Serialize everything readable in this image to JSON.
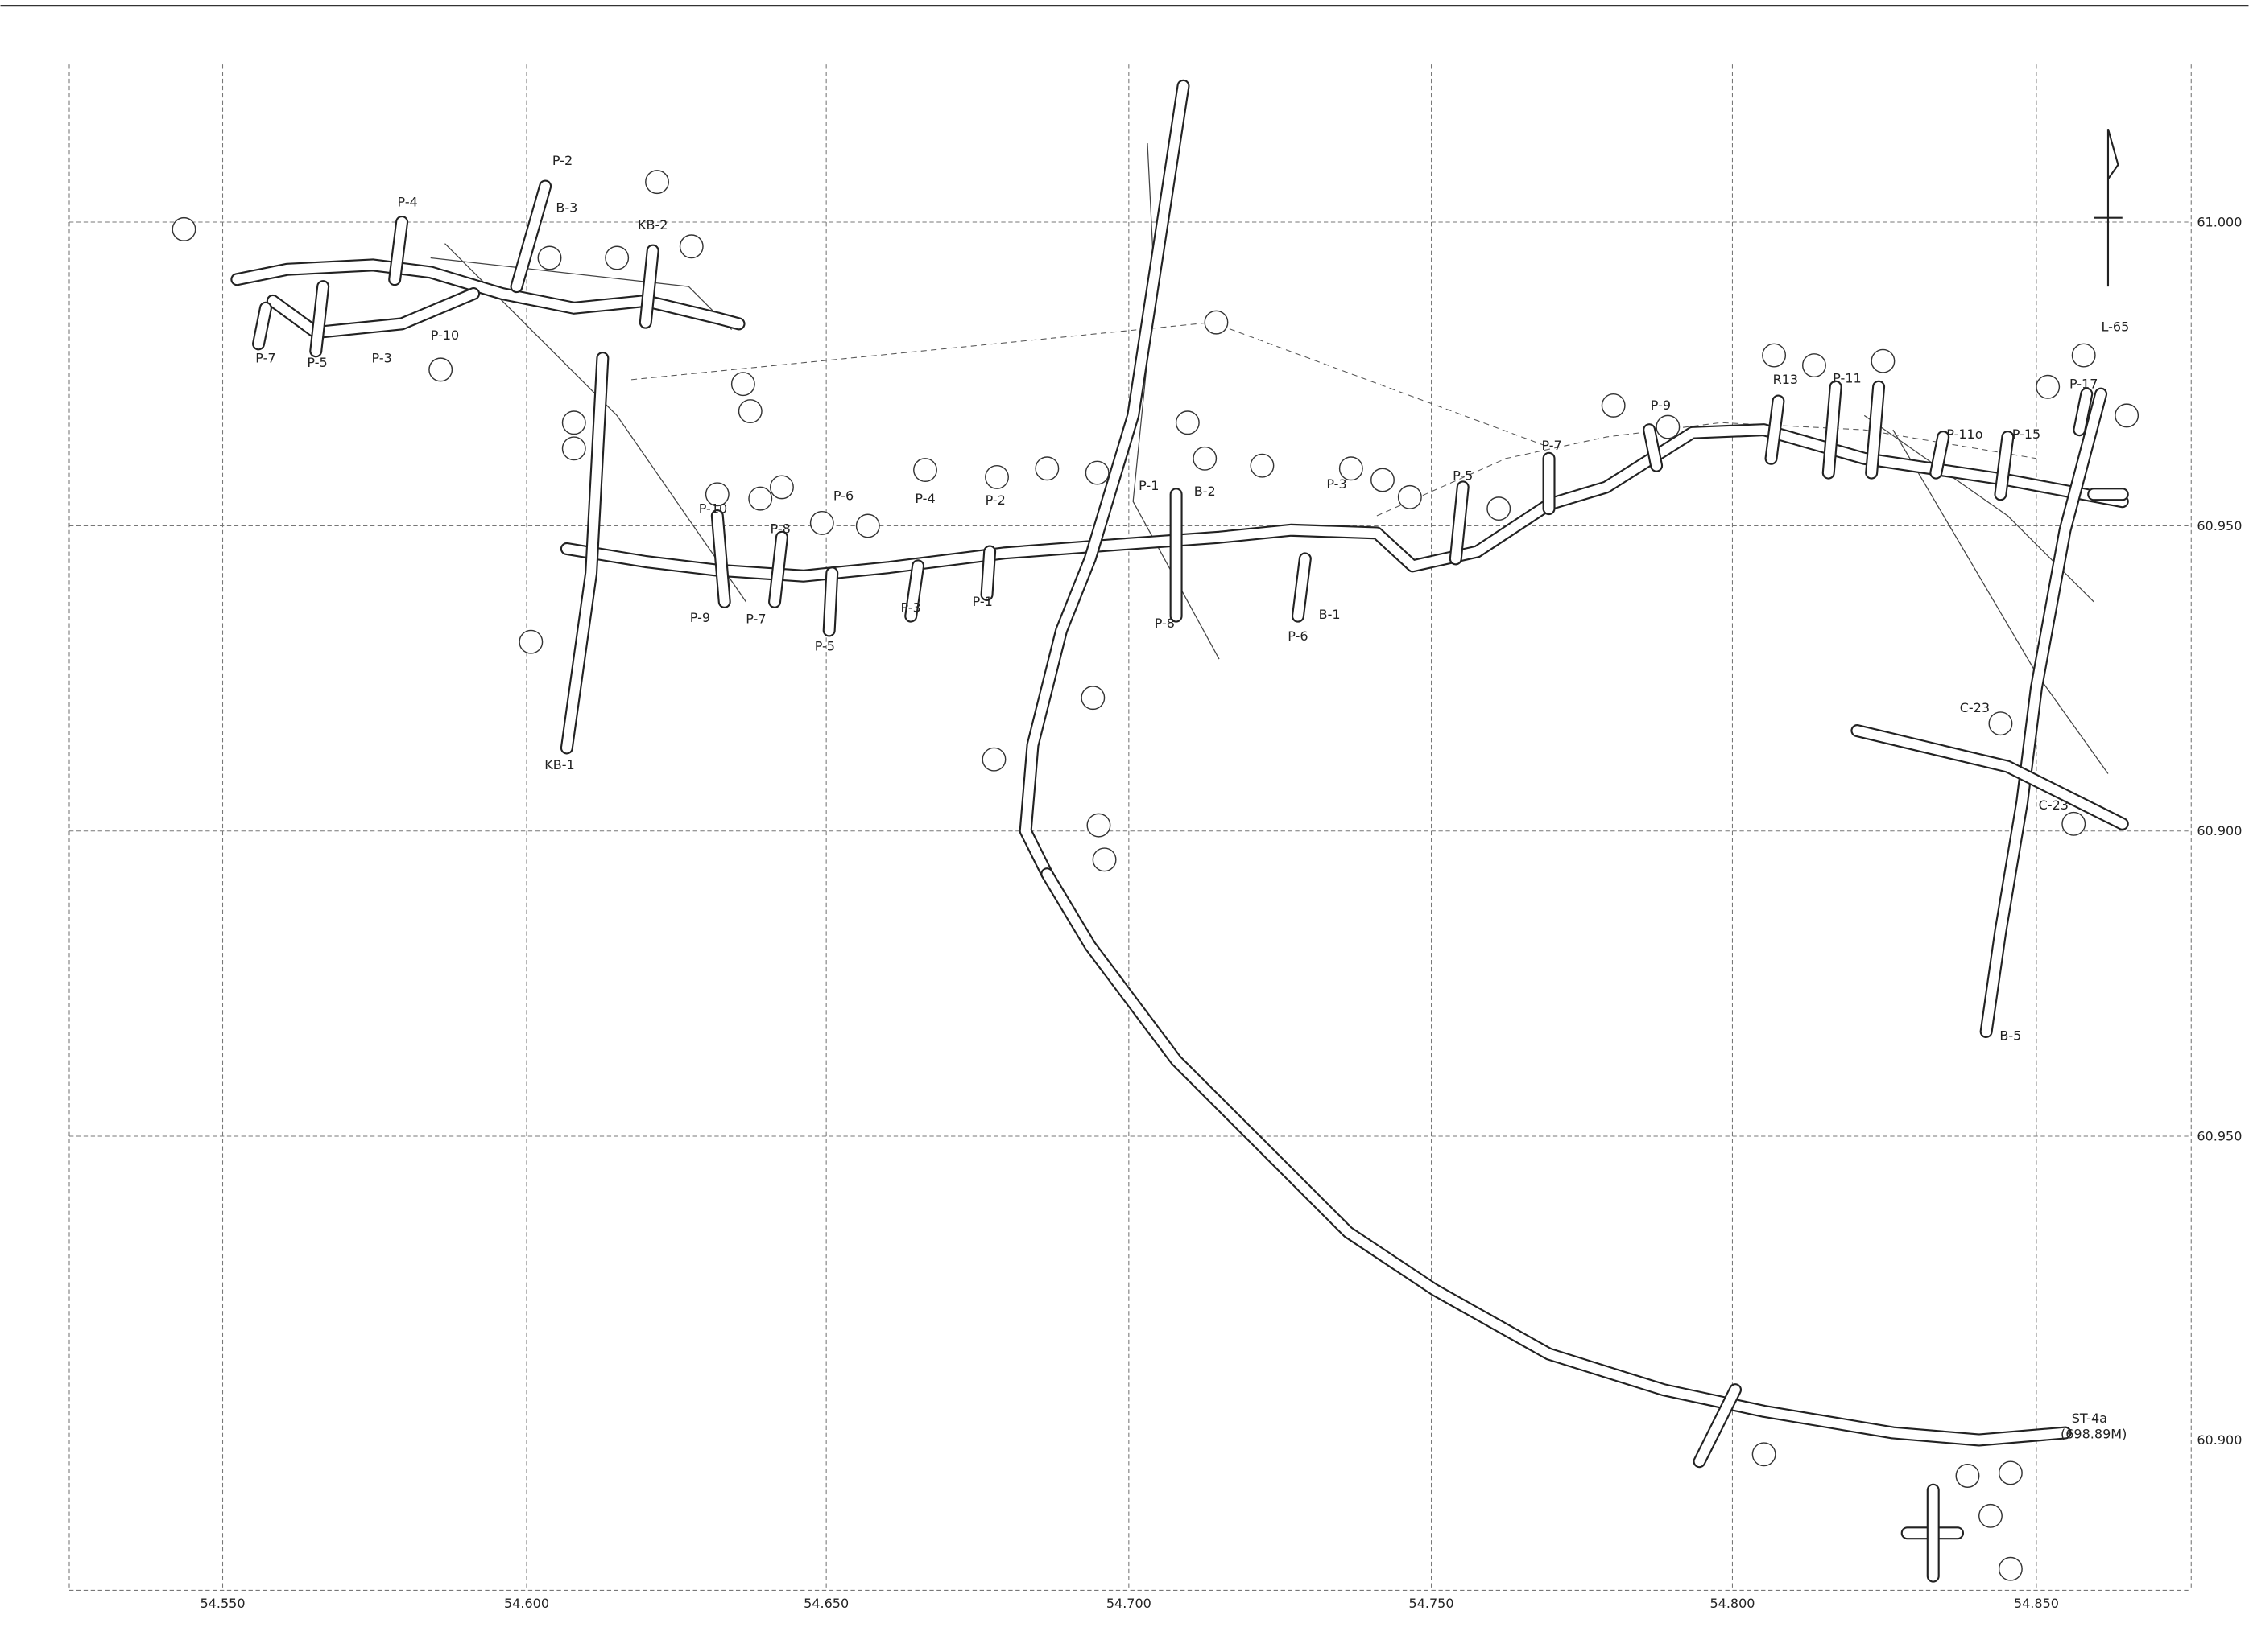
{
  "x_labels": [
    "54.550",
    "54.600",
    "54.650",
    "54.700",
    "54.750",
    "54.800",
    "54.850"
  ],
  "y_labels": [
    "61.000",
    "60.950",
    "60.900",
    "60.950",
    "60.900"
  ],
  "labels": [
    "P-2",
    "B-3",
    "P-4",
    "KB-2",
    "P-7",
    "P-5",
    "P-3",
    "P-10",
    "P-6",
    "P-4",
    "P-2",
    "P-1",
    "B-2",
    "P-3",
    "P-5",
    "P-7",
    "P-9",
    "R13",
    "P-11",
    "P-11o",
    "P-15",
    "P-17",
    "L-65",
    "P-9",
    "P-7",
    "P-5",
    "P-3",
    "P-1",
    "P-8",
    "P-6",
    "B-1",
    "KB-1",
    "C-23",
    "C-23",
    "B-5",
    "ST-4a",
    "(698.89M)",
    "P-10",
    "P-8"
  ]
}
